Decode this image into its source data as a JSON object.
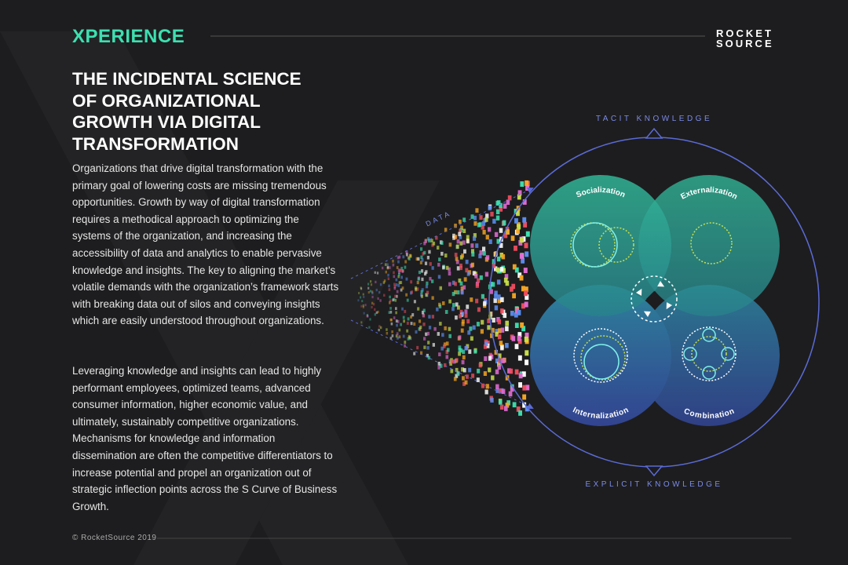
{
  "header": {
    "brand": "XPERIENCE",
    "logo_top": "ROCKET",
    "logo_bottom": "SOURCE"
  },
  "title": "THE INCIDENTAL SCIENCE OF ORGANIZATIONAL GROWTH VIA DIGITAL TRANSFORMATION",
  "paragraphs": [
    "Organizations that drive digital transformation with the primary goal of lowering costs are missing tremendous opportunities. Growth by way of digital transformation requires a methodical approach to optimizing the systems of the organization, and increasing the accessibility of data and analytics to enable pervasive knowledge and insights. The key to aligning the market’s volatile demands with the organization’s framework starts with breaking data out of silos and conveying insights which are easily understood throughout organizations.",
    "Leveraging knowledge and insights can lead to highly performant employees, optimized teams, advanced consumer information, higher economic value, and ultimately, sustainably competitive organizations. Mechanisms for knowledge and information dissemination are often the competitive differentiators to increase potential and propel an organization out of strategic inflection points across the S Curve of Business Growth."
  ],
  "diagram": {
    "top_label": "TACIT KNOWLEDGE",
    "bottom_label": "EXPLICIT KNOWLEDGE",
    "data_label": "DATA",
    "quadrants": [
      "Socialization",
      "Externalization",
      "Internalization",
      "Combination"
    ]
  },
  "footer": "© RocketSource 2019"
}
